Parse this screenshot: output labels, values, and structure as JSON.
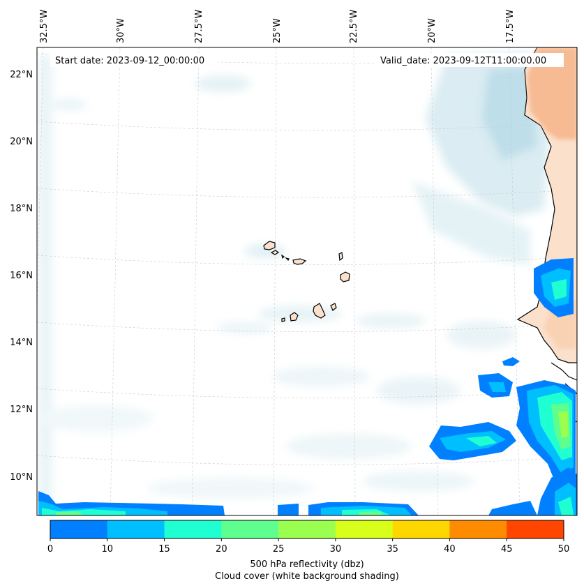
{
  "map": {
    "start_date": "Start date: 2023-09-12_00:00:00",
    "valid_date": "Valid_date: 2023-09-12T11:00:00.00",
    "lon_labels": [
      "32.5°W",
      "30°W",
      "27.5°W",
      "25°W",
      "22.5°W",
      "20°W",
      "17.5°W"
    ],
    "lat_labels": [
      "22°N",
      "20°N",
      "18°N",
      "16°N",
      "14°N",
      "12°N",
      "10°N"
    ],
    "extent": {
      "lon_min": -33.0,
      "lon_max": -16.2,
      "lat_min": 8.9,
      "lat_max": 22.8
    },
    "colorbar": {
      "ticks": [
        "0",
        "10",
        "15",
        "20",
        "25",
        "30",
        "35",
        "40",
        "45",
        "50"
      ],
      "colors": [
        "#0080ff",
        "#00bfff",
        "#1fffd2",
        "#5fff8f",
        "#9bff50",
        "#d8ff1a",
        "#ffd700",
        "#ff8c00",
        "#ff4500"
      ],
      "label_line1": "500 hPa reflectivity (dbz)",
      "label_line2": "Cloud cover (white background shading)"
    },
    "colors": {
      "land": "#fbe0cc",
      "land_deep": "#f6b98c",
      "cloud": "#cde7ef",
      "coast": "#000000",
      "grid": "#c8c8c8"
    }
  }
}
